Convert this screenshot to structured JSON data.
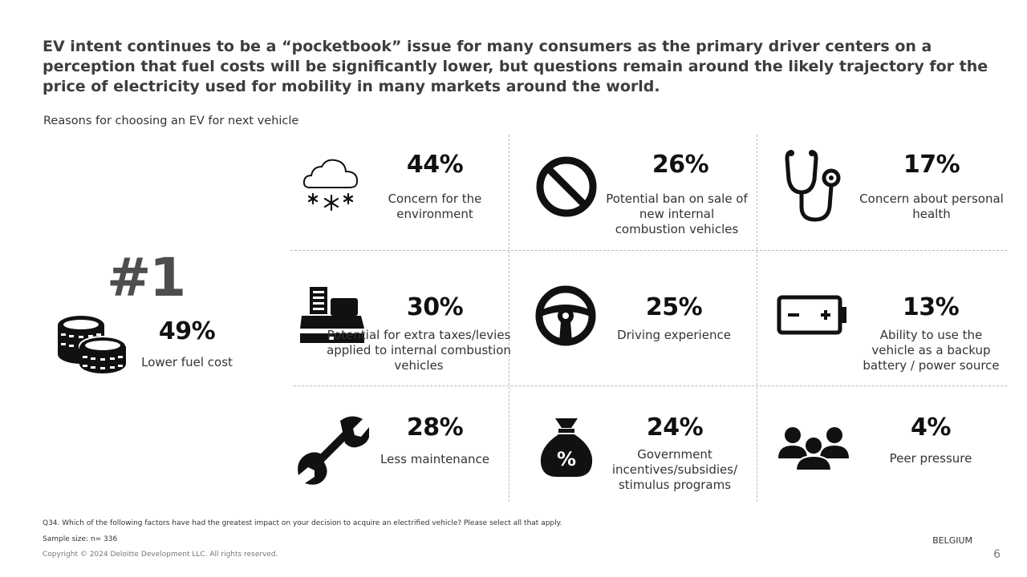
{
  "title": "EV intent continues to be a “pocketbook” issue for many consumers as the primary driver centers on a perception that fuel costs will be significantly lower, but questions remain around the likely trajectory for the price of electricity used for mobility in many markets around the world.",
  "chart_data": {
    "type": "table",
    "title": "Reasons for choosing an EV for next vehicle",
    "top_reason": {
      "rank": "#1",
      "value": "49%",
      "label": "Lower fuel cost",
      "icon": "coins-icon"
    },
    "reasons": [
      {
        "value": "44%",
        "label": "Concern for the environment",
        "icon": "snow-cloud-icon"
      },
      {
        "value": "26%",
        "label": "Potential ban on sale of new internal combustion vehicles",
        "icon": "ban-icon"
      },
      {
        "value": "17%",
        "label": "Concern about personal health",
        "icon": "stethoscope-icon"
      },
      {
        "value": "30%",
        "label": "Potential for extra taxes/levies applied to internal combustion vehicles",
        "icon": "cash-register-icon"
      },
      {
        "value": "25%",
        "label": "Driving experience",
        "icon": "steering-wheel-icon"
      },
      {
        "value": "13%",
        "label": "Ability to use the vehicle as a backup battery / power source",
        "icon": "battery-icon"
      },
      {
        "value": "28%",
        "label": "Less maintenance",
        "icon": "wrench-icon"
      },
      {
        "value": "24%",
        "label": "Government incentives/subsidies/ stimulus programs",
        "icon": "money-bag-percent-icon"
      },
      {
        "value": "4%",
        "label": "Peer pressure",
        "icon": "people-group-icon"
      }
    ]
  },
  "footer": {
    "question": "Q34. Which of the following factors have had the greatest impact on your decision to acquire an electrified vehicle? Please select all that apply.",
    "sample": "Sample size: n= 336",
    "copyright": "Copyright © 2024 Deloitte Development LLC. All rights reserved.",
    "country": "BELGIUM",
    "page": "6"
  }
}
